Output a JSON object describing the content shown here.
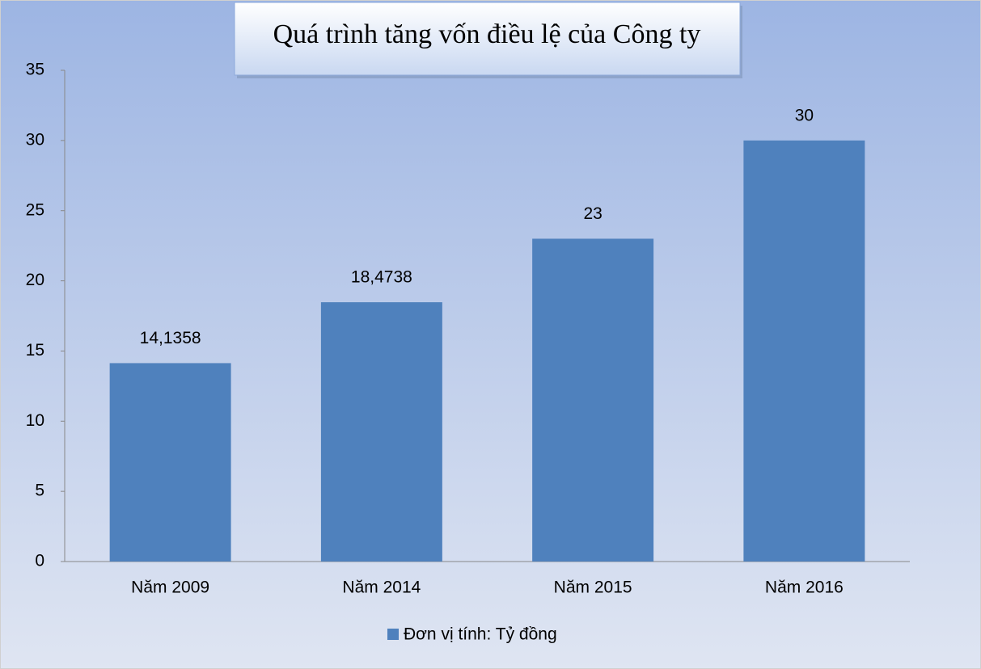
{
  "chart_data": {
    "type": "bar",
    "title": "Quá trình tăng vốn điều lệ của Công ty",
    "categories": [
      "Năm 2009",
      "Năm 2014",
      "Năm 2015",
      "Năm 2016"
    ],
    "series": [
      {
        "name": "Đơn vị tính: Tỷ đồng",
        "color": "#4f81bd",
        "values": [
          14.1358,
          18.4738,
          23,
          30
        ],
        "value_labels": [
          "14,1358",
          "18,4738",
          "23",
          "30"
        ]
      }
    ],
    "ylim": [
      0,
      35
    ],
    "yticks": [
      0,
      5,
      10,
      15,
      20,
      25,
      30,
      35
    ],
    "grid": false,
    "legend": "bottom"
  }
}
